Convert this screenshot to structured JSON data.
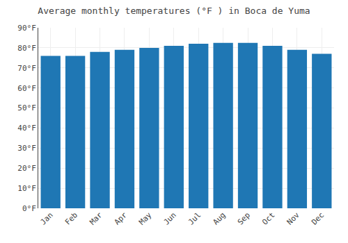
{
  "chart_data": {
    "type": "bar",
    "title": "Average monthly temperatures (°F ) in Boca de Yuma",
    "categories": [
      "Jan",
      "Feb",
      "Mar",
      "Apr",
      "May",
      "Jun",
      "Jul",
      "Aug",
      "Sep",
      "Oct",
      "Nov",
      "Dec"
    ],
    "values": [
      76,
      76,
      78,
      79,
      80,
      81,
      82,
      82.5,
      82.5,
      81,
      79,
      77
    ],
    "ylim": [
      0,
      90
    ],
    "yticks": [
      {
        "value": 0,
        "label": "0°F"
      },
      {
        "value": 10,
        "label": "10°F"
      },
      {
        "value": 20,
        "label": "20°F"
      },
      {
        "value": 30,
        "label": "30°F"
      },
      {
        "value": 40,
        "label": "40°F"
      },
      {
        "value": 50,
        "label": "50°F"
      },
      {
        "value": 60,
        "label": "60°F"
      },
      {
        "value": 70,
        "label": "70°F"
      },
      {
        "value": 80,
        "label": "80°F"
      },
      {
        "value": 90,
        "label": "90°F"
      }
    ],
    "grid": true
  }
}
